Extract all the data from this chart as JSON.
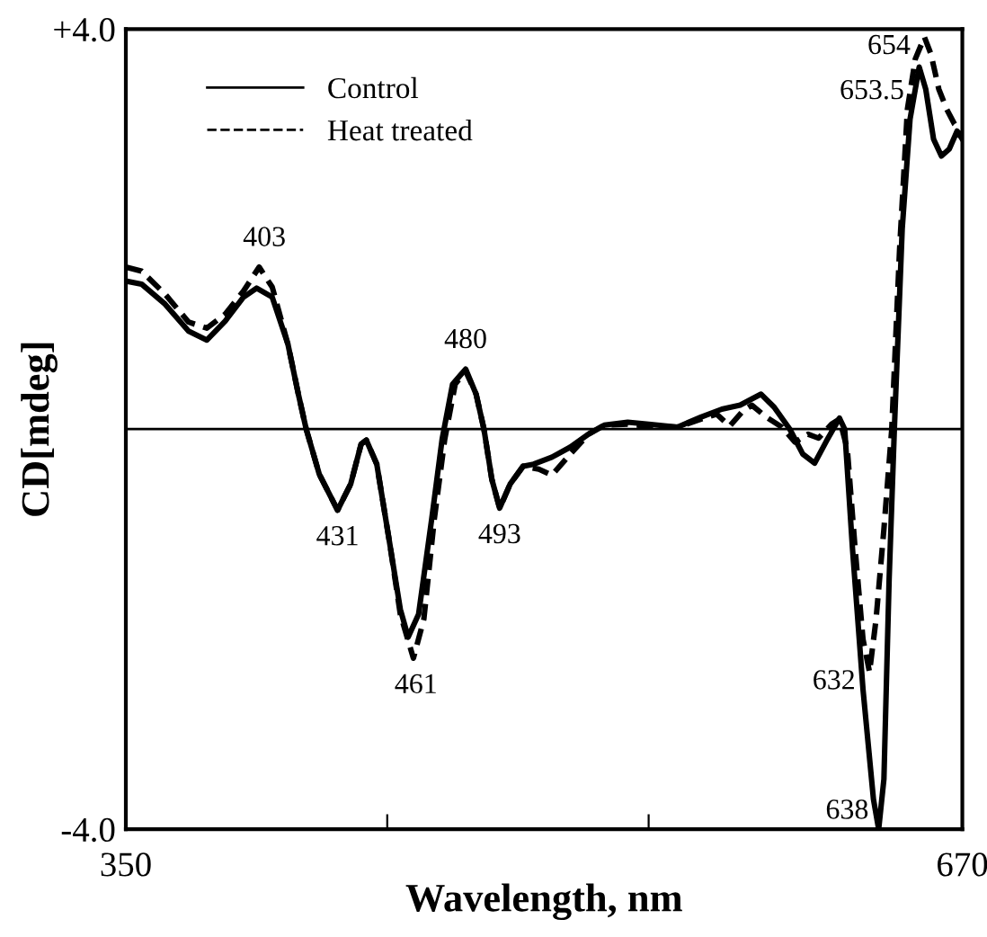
{
  "chart_data": {
    "type": "line",
    "xlabel": "Wavelength, nm",
    "ylabel": "CD[mdeg]",
    "xlim": [
      350,
      670
    ],
    "ylim": [
      -4.0,
      4.0
    ],
    "xticks": [
      350,
      {
        "value": 450,
        "label": null
      },
      {
        "value": 550,
        "label": null
      },
      670
    ],
    "yticks": [
      {
        "value": 4.0,
        "label": "+4.0"
      },
      {
        "value": -4.0,
        "label": "-4.0"
      }
    ],
    "grid": false,
    "legend": "top left",
    "marker": "none",
    "ref_lines": [
      {
        "axis": "y",
        "value": 0,
        "color": "#000000",
        "line_style": "solid"
      }
    ],
    "series": [
      {
        "name": "Control",
        "color": "#000000",
        "line_style": "solid",
        "x": [
          350,
          356,
          365,
          374,
          381,
          388,
          395,
          400,
          406,
          412,
          416,
          419,
          424,
          431,
          436,
          440,
          442,
          446,
          451,
          455,
          458,
          462,
          467,
          471,
          475,
          480,
          484,
          487,
          490,
          493,
          497,
          502,
          506,
          513,
          520,
          527,
          533,
          542,
          550,
          561,
          570,
          578,
          585,
          593,
          598,
          604,
          609,
          613.5,
          618,
          623,
          625,
          628,
          632,
          636,
          638,
          640,
          642,
          644,
          647,
          650,
          653.5,
          656,
          659,
          662,
          665,
          668,
          670
        ],
        "values": [
          1.48,
          1.45,
          1.25,
          0.98,
          0.89,
          1.08,
          1.32,
          1.41,
          1.32,
          0.85,
          0.35,
          0.0,
          -0.45,
          -0.81,
          -0.55,
          -0.15,
          -0.11,
          -0.35,
          -1.15,
          -1.8,
          -2.08,
          -1.85,
          -0.9,
          -0.1,
          0.45,
          0.6,
          0.35,
          0.0,
          -0.5,
          -0.79,
          -0.55,
          -0.37,
          -0.35,
          -0.28,
          -0.18,
          -0.05,
          0.04,
          0.07,
          0.05,
          0.02,
          0.12,
          0.2,
          0.24,
          0.35,
          0.22,
          0.0,
          -0.25,
          -0.34,
          -0.12,
          0.11,
          0.0,
          -1.2,
          -2.6,
          -3.7,
          -4.0,
          -3.5,
          -1.5,
          0.0,
          2.0,
          3.1,
          3.62,
          3.4,
          2.9,
          2.73,
          2.8,
          2.98,
          2.9
        ]
      },
      {
        "name": "Heat treated",
        "color": "#000000",
        "line_style": "dashed",
        "x": [
          350,
          356,
          365,
          374,
          381,
          388,
          395,
          401,
          406,
          412,
          416,
          419,
          424,
          431,
          436,
          440,
          442,
          446,
          451,
          455,
          460,
          464,
          468,
          472,
          476,
          480,
          484,
          487,
          490,
          493,
          497,
          502,
          508,
          513,
          520,
          527,
          533,
          542,
          550,
          561,
          570,
          576,
          581,
          586,
          589.5,
          595,
          601,
          606,
          611,
          615,
          620,
          623,
          626,
          629,
          632,
          634.5,
          637,
          640,
          643,
          646,
          649,
          652,
          655.5,
          658,
          661,
          664,
          667,
          670
        ],
        "values": [
          1.62,
          1.58,
          1.35,
          1.07,
          1.01,
          1.15,
          1.38,
          1.62,
          1.42,
          0.85,
          0.35,
          0.0,
          -0.45,
          -0.81,
          -0.55,
          -0.15,
          -0.11,
          -0.35,
          -1.15,
          -1.85,
          -2.29,
          -1.9,
          -0.9,
          -0.1,
          0.45,
          0.58,
          0.35,
          0.0,
          -0.5,
          -0.79,
          -0.55,
          -0.37,
          -0.4,
          -0.46,
          -0.25,
          -0.05,
          0.04,
          0.05,
          0.03,
          0.02,
          0.1,
          0.15,
          0.03,
          0.18,
          0.24,
          0.12,
          0.02,
          -0.13,
          -0.05,
          -0.09,
          0.05,
          0.1,
          -0.2,
          -1.2,
          -2.1,
          -2.43,
          -1.9,
          -1.0,
          0.0,
          1.8,
          3.2,
          3.7,
          3.92,
          3.75,
          3.4,
          3.2,
          3.05,
          2.98
        ]
      }
    ],
    "annotations": [
      {
        "text": "403",
        "x": 403,
        "y": 1.62
      },
      {
        "text": "431",
        "x": 431,
        "y": -0.81
      },
      {
        "text": "461",
        "x": 461,
        "y": -2.29
      },
      {
        "text": "480",
        "x": 480,
        "y": 0.6
      },
      {
        "text": "493",
        "x": 493,
        "y": -0.79
      },
      {
        "text": "632",
        "x": 632,
        "y": -2.43
      },
      {
        "text": "638",
        "x": 638,
        "y": -4.0
      },
      {
        "text": "653.5",
        "x": 653.5,
        "y": 3.62
      },
      {
        "text": "654",
        "x": 654,
        "y": 3.92
      }
    ]
  }
}
